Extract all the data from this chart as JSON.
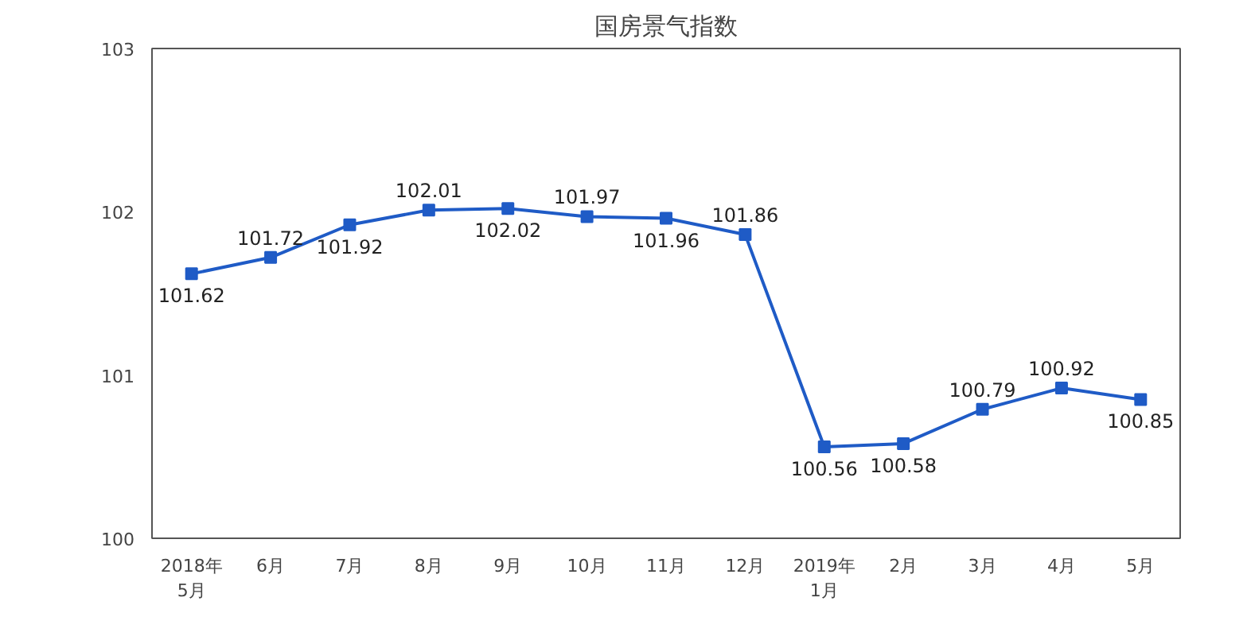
{
  "chart_data": {
    "type": "line",
    "title": "国房景气指数",
    "categories": [
      "2018年\n5月",
      "6月",
      "7月",
      "8月",
      "9月",
      "10月",
      "11月",
      "12月",
      "2019年\n1月",
      "2月",
      "3月",
      "4月",
      "5月"
    ],
    "series": [
      {
        "color": "#1f5bc6",
        "values": [
          101.62,
          101.72,
          101.92,
          102.01,
          102.02,
          101.97,
          101.96,
          101.86,
          100.56,
          100.58,
          100.79,
          100.92,
          100.85
        ]
      }
    ],
    "ylim": [
      100,
      103
    ],
    "yticks": [
      100,
      101,
      102,
      103
    ],
    "grid": false,
    "marker": "square",
    "line_style": "solid",
    "data_labels": true
  }
}
